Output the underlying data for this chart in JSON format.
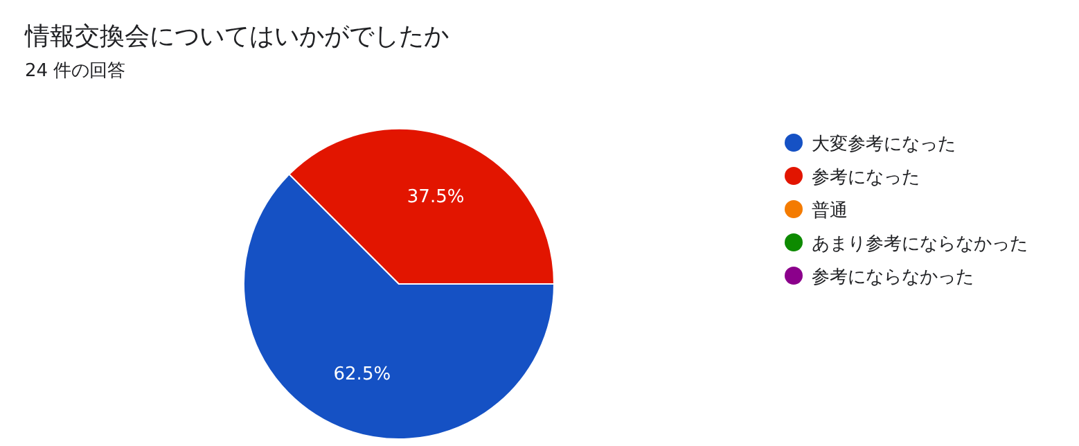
{
  "chart_data": {
    "type": "pie",
    "title": "情報交換会についてはいかがでしたか",
    "subtitle": "24 件の回答",
    "categories": [
      "大変参考になった",
      "参考になった",
      "普通",
      "あまり参考にならなかった",
      "参考にならなかった"
    ],
    "values": [
      62.5,
      37.5,
      0,
      0,
      0
    ],
    "colors": [
      "#1551c4",
      "#e21500",
      "#f47b00",
      "#0d8a00",
      "#8b008b"
    ],
    "value_labels": [
      "62.5%",
      "37.5%",
      null,
      null,
      null
    ],
    "legend": "right"
  }
}
